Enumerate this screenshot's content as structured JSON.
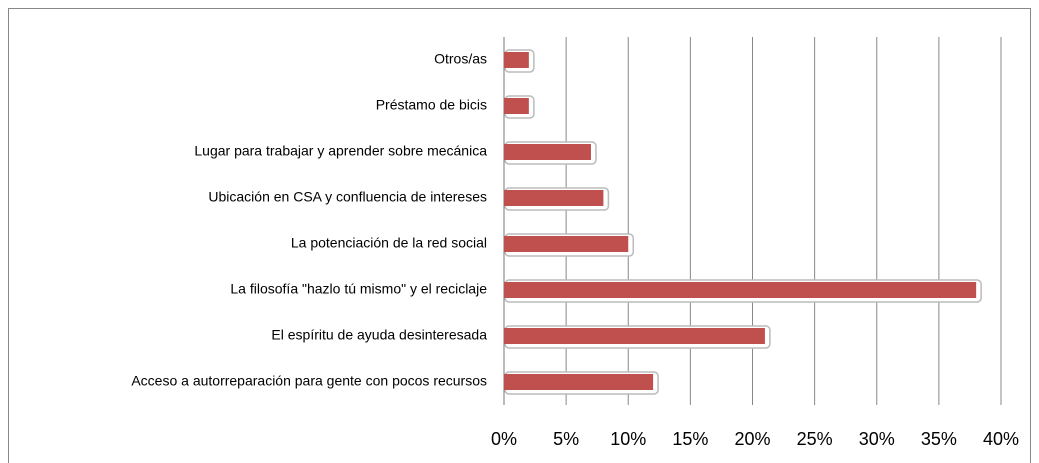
{
  "chart_data": {
    "type": "barh",
    "categories": [
      "Otros/as",
      "Préstamo de bicis",
      "Lugar para trabajar y aprender sobre mecánica",
      "Ubicación en CSA y confluencia de intereses",
      "La potenciación de la red social",
      "La filosofía \"hazlo tú mismo\" y el reciclaje",
      "El espíritu de ayuda desinteresada",
      "Acceso a autorreparación para gente con pocos recursos"
    ],
    "values": [
      2,
      2,
      7,
      8,
      10,
      38,
      21,
      12
    ],
    "color": "#c0504d",
    "xlim": [
      0,
      40
    ],
    "xticks": [
      {
        "value": 0,
        "label": "0%"
      },
      {
        "value": 5,
        "label": "5%"
      },
      {
        "value": 10,
        "label": "10%"
      },
      {
        "value": 15,
        "label": "15%"
      },
      {
        "value": 20,
        "label": "20%"
      },
      {
        "value": 25,
        "label": "25%"
      },
      {
        "value": 30,
        "label": "30%"
      },
      {
        "value": 35,
        "label": "35%"
      },
      {
        "value": 40,
        "label": "40%"
      }
    ],
    "grid": true
  }
}
